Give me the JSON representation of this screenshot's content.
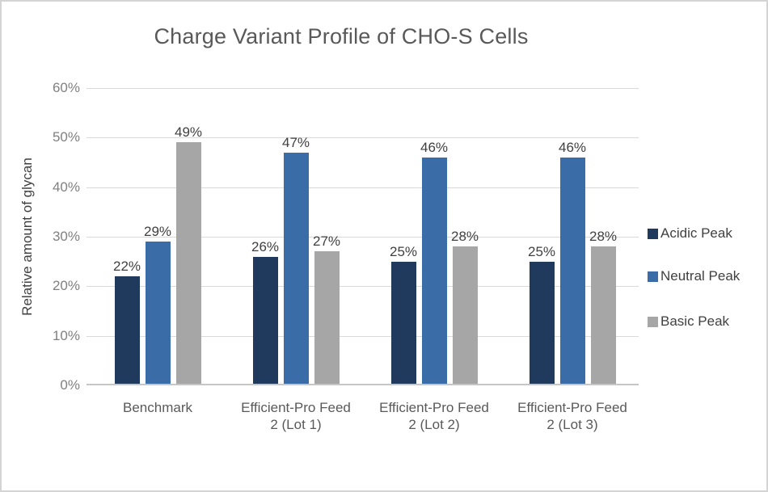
{
  "chart_data": {
    "type": "bar",
    "title": "Charge Variant Profile of CHO-S Cells",
    "ylabel": "Relative amount of glycan",
    "xlabel": "",
    "ylim": [
      0,
      60
    ],
    "ytick_step": 10,
    "ytick_labels": [
      "0%",
      "10%",
      "20%",
      "30%",
      "40%",
      "50%",
      "60%"
    ],
    "grid": true,
    "legend_position": "right",
    "categories": [
      "Benchmark",
      "Efficient-Pro Feed 2 (Lot 1)",
      "Efficient-Pro Feed 2 (Lot 2)",
      "Efficient-Pro Feed 2 (Lot 3)"
    ],
    "categories_lines": [
      [
        "Benchmark"
      ],
      [
        "Efficient-Pro Feed",
        "2 (Lot 1)"
      ],
      [
        "Efficient-Pro Feed",
        "2 (Lot 2)"
      ],
      [
        "Efficient-Pro Feed",
        "2 (Lot 3)"
      ]
    ],
    "series": [
      {
        "name": "Acidic Peak",
        "color": "#203a5e",
        "values": [
          22,
          26,
          25,
          25
        ],
        "labels": [
          "22%",
          "26%",
          "25%",
          "25%"
        ]
      },
      {
        "name": "Neutral Peak",
        "color": "#3a6da8",
        "values": [
          29,
          47,
          46,
          46
        ],
        "labels": [
          "29%",
          "47%",
          "46%",
          "46%"
        ]
      },
      {
        "name": "Basic Peak",
        "color": "#a6a6a6",
        "values": [
          49,
          27,
          28,
          28
        ],
        "labels": [
          "49%",
          "27%",
          "28%",
          "28%"
        ]
      }
    ]
  },
  "colors": {
    "title_text": "#595959",
    "axis_title_text": "#404040",
    "tick_text": "#808080",
    "category_text": "#595959",
    "data_label_text": "#404040",
    "gridline": "#d9d9d9",
    "axis_line": "#c6c6c6",
    "page_border": "#d4d4d4",
    "background": "#ffffff"
  }
}
